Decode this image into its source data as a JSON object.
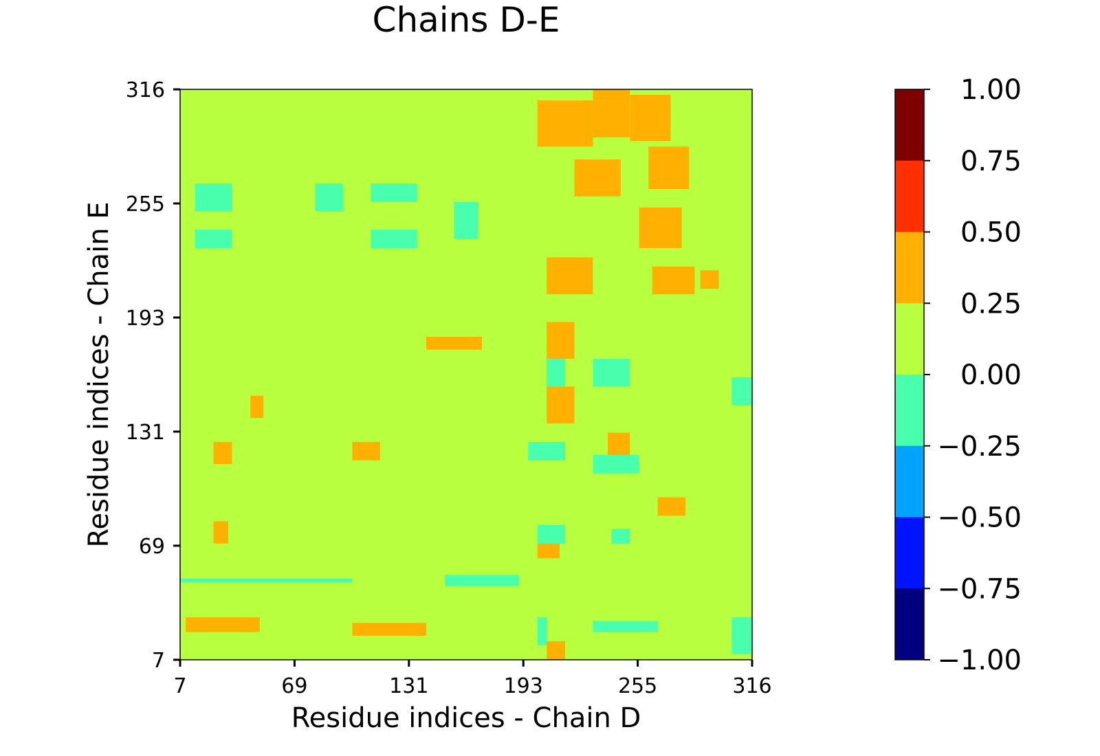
{
  "chart_data": {
    "type": "heatmap",
    "title": "Chains D-E",
    "xlabel": "Residue indices - Chain D",
    "ylabel": "Residue indices - Chain E",
    "x_range": [
      7,
      316
    ],
    "y_range": [
      7,
      316
    ],
    "x_ticks": [
      "7",
      "69",
      "131",
      "193",
      "255",
      "316"
    ],
    "y_ticks": [
      "7",
      "69",
      "131",
      "193",
      "255",
      "316"
    ],
    "background_value_bin": "0.00 to 0.25",
    "colorbar": {
      "ticks": [
        "1.00",
        "0.75",
        "0.50",
        "0.25",
        "0.00",
        "−0.25",
        "−0.50",
        "−0.75",
        "−1.00"
      ],
      "bins": [
        {
          "range": [
            0.75,
            1.0
          ],
          "color": "#7f0000"
        },
        {
          "range": [
            0.5,
            0.75
          ],
          "color": "#ff3000"
        },
        {
          "range": [
            0.25,
            0.5
          ],
          "color": "#ffb000"
        },
        {
          "range": [
            0.0,
            0.25
          ],
          "color": "#b8ff3f"
        },
        {
          "range": [
            -0.25,
            0.0
          ],
          "color": "#48ffae"
        },
        {
          "range": [
            -0.5,
            -0.25
          ],
          "color": "#00a4ff"
        },
        {
          "range": [
            -0.75,
            -0.5
          ],
          "color": "#0014ff"
        },
        {
          "range": [
            -1.0,
            -0.75
          ],
          "color": "#000080"
        }
      ]
    },
    "positive_regions": [
      {
        "x": [
          200,
          230
        ],
        "y": [
          285,
          310
        ]
      },
      {
        "x": [
          230,
          250
        ],
        "y": [
          290,
          316
        ]
      },
      {
        "x": [
          250,
          272
        ],
        "y": [
          288,
          313
        ]
      },
      {
        "x": [
          260,
          282
        ],
        "y": [
          262,
          285
        ]
      },
      {
        "x": [
          220,
          245
        ],
        "y": [
          258,
          278
        ]
      },
      {
        "x": [
          255,
          278
        ],
        "y": [
          230,
          252
        ]
      },
      {
        "x": [
          205,
          230
        ],
        "y": [
          205,
          225
        ]
      },
      {
        "x": [
          262,
          285
        ],
        "y": [
          205,
          220
        ]
      },
      {
        "x": [
          288,
          298
        ],
        "y": [
          208,
          218
        ]
      },
      {
        "x": [
          205,
          220
        ],
        "y": [
          170,
          190
        ]
      },
      {
        "x": [
          205,
          220
        ],
        "y": [
          135,
          155
        ]
      },
      {
        "x": [
          238,
          250
        ],
        "y": [
          110,
          130
        ]
      },
      {
        "x": [
          140,
          170
        ],
        "y": [
          175,
          182
        ]
      },
      {
        "x": [
          100,
          115
        ],
        "y": [
          115,
          125
        ]
      },
      {
        "x": [
          25,
          35
        ],
        "y": [
          113,
          125
        ]
      },
      {
        "x": [
          25,
          33
        ],
        "y": [
          70,
          82
        ]
      },
      {
        "x": [
          10,
          50
        ],
        "y": [
          22,
          30
        ]
      },
      {
        "x": [
          100,
          140
        ],
        "y": [
          20,
          27
        ]
      },
      {
        "x": [
          45,
          52
        ],
        "y": [
          138,
          150
        ]
      },
      {
        "x": [
          205,
          215
        ],
        "y": [
          7,
          17
        ]
      },
      {
        "x": [
          200,
          212
        ],
        "y": [
          62,
          75
        ]
      },
      {
        "x": [
          265,
          280
        ],
        "y": [
          85,
          95
        ]
      }
    ],
    "negative_regions": [
      {
        "x": [
          15,
          35
        ],
        "y": [
          250,
          265
        ]
      },
      {
        "x": [
          15,
          35
        ],
        "y": [
          230,
          240
        ]
      },
      {
        "x": [
          80,
          95
        ],
        "y": [
          250,
          265
        ]
      },
      {
        "x": [
          110,
          135
        ],
        "y": [
          255,
          265
        ]
      },
      {
        "x": [
          110,
          135
        ],
        "y": [
          230,
          240
        ]
      },
      {
        "x": [
          155,
          168
        ],
        "y": [
          235,
          255
        ]
      },
      {
        "x": [
          205,
          215
        ],
        "y": [
          155,
          170
        ]
      },
      {
        "x": [
          230,
          250
        ],
        "y": [
          155,
          170
        ]
      },
      {
        "x": [
          195,
          215
        ],
        "y": [
          115,
          125
        ]
      },
      {
        "x": [
          230,
          255
        ],
        "y": [
          108,
          118
        ]
      },
      {
        "x": [
          200,
          215
        ],
        "y": [
          70,
          80
        ]
      },
      {
        "x": [
          240,
          250
        ],
        "y": [
          70,
          78
        ]
      },
      {
        "x": [
          7,
          100
        ],
        "y": [
          49,
          51
        ]
      },
      {
        "x": [
          150,
          190
        ],
        "y": [
          47,
          53
        ]
      },
      {
        "x": [
          230,
          265
        ],
        "y": [
          22,
          28
        ]
      },
      {
        "x": [
          200,
          205
        ],
        "y": [
          15,
          30
        ]
      },
      {
        "x": [
          305,
          316
        ],
        "y": [
          10,
          30
        ]
      },
      {
        "x": [
          305,
          316
        ],
        "y": [
          145,
          160
        ]
      }
    ]
  }
}
